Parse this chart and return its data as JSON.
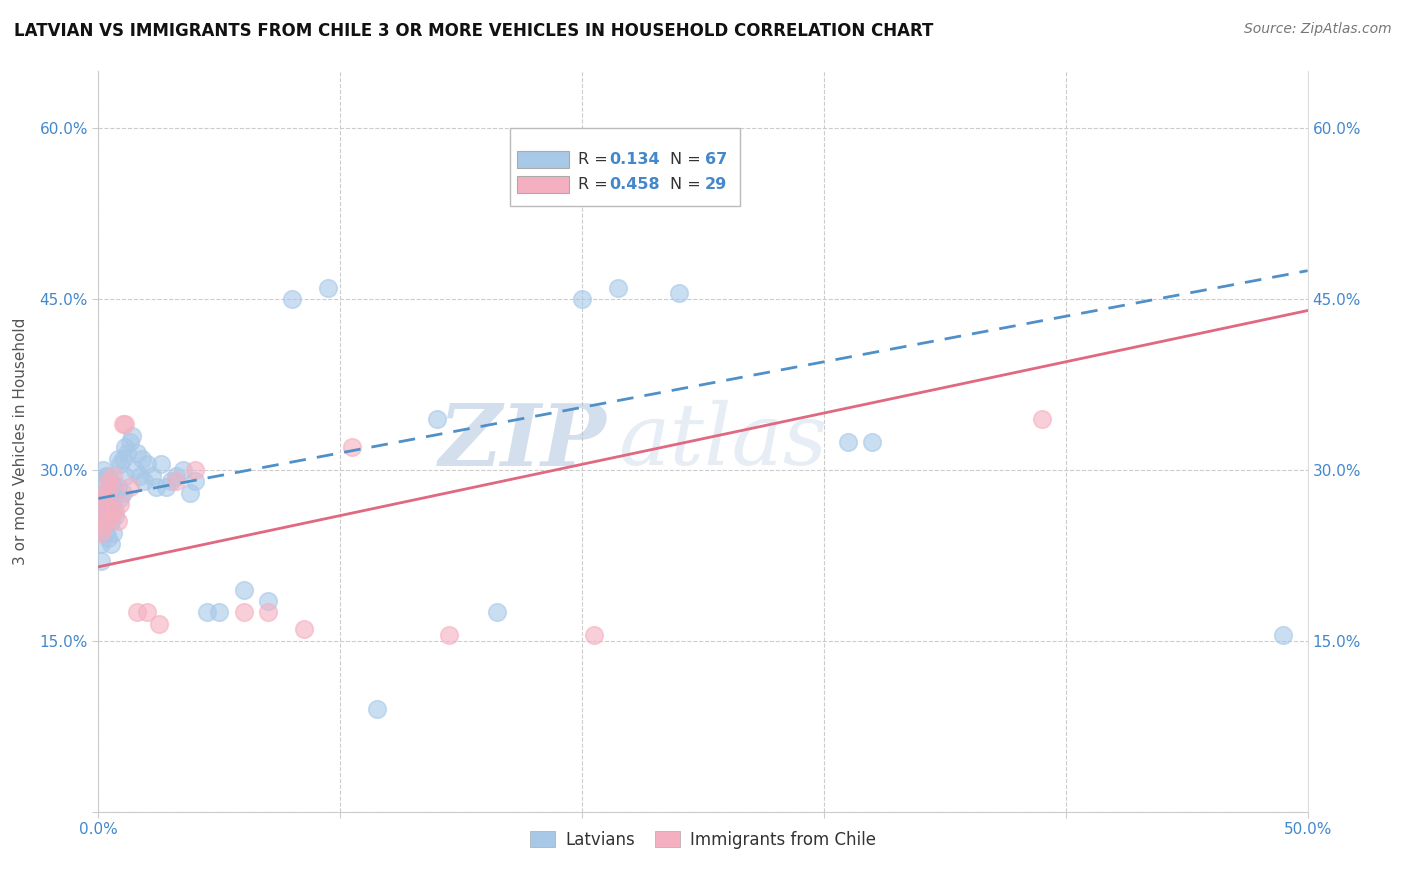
{
  "title": "LATVIAN VS IMMIGRANTS FROM CHILE 3 OR MORE VEHICLES IN HOUSEHOLD CORRELATION CHART",
  "source": "Source: ZipAtlas.com",
  "ylabel": "3 or more Vehicles in Household",
  "xlim": [
    0.0,
    0.5
  ],
  "ylim": [
    0.0,
    0.65
  ],
  "xticks": [
    0.0,
    0.1,
    0.2,
    0.3,
    0.4,
    0.5
  ],
  "xticklabels": [
    "0.0%",
    "",
    "",
    "",
    "",
    "50.0%"
  ],
  "yticks": [
    0.0,
    0.15,
    0.3,
    0.45,
    0.6
  ],
  "yticklabels_left": [
    "",
    "15.0%",
    "30.0%",
    "45.0%",
    "60.0%"
  ],
  "yticklabels_right": [
    "",
    "15.0%",
    "30.0%",
    "45.0%",
    "60.0%"
  ],
  "latvian_color": "#a8c8e8",
  "chile_color": "#f4b0c0",
  "latvian_line_color": "#5090c8",
  "chile_line_color": "#e06880",
  "R_latvian": 0.134,
  "N_latvian": 67,
  "R_chile": 0.458,
  "N_chile": 29,
  "legend_label_latvians": "Latvians",
  "legend_label_chile": "Immigrants from Chile",
  "watermark_zip": "ZIP",
  "watermark_atlas": "atlas",
  "latvian_line_x0": 0.0,
  "latvian_line_y0": 0.275,
  "latvian_line_x1": 0.5,
  "latvian_line_y1": 0.475,
  "chile_line_x0": 0.0,
  "chile_line_y0": 0.215,
  "chile_line_x1": 0.5,
  "chile_line_y1": 0.44,
  "latvian_pts_x": [
    0.001,
    0.001,
    0.001,
    0.001,
    0.001,
    0.002,
    0.002,
    0.002,
    0.002,
    0.003,
    0.003,
    0.003,
    0.003,
    0.004,
    0.004,
    0.004,
    0.004,
    0.005,
    0.005,
    0.005,
    0.005,
    0.006,
    0.006,
    0.006,
    0.007,
    0.007,
    0.008,
    0.008,
    0.009,
    0.009,
    0.01,
    0.01,
    0.011,
    0.011,
    0.012,
    0.013,
    0.014,
    0.015,
    0.016,
    0.017,
    0.018,
    0.019,
    0.02,
    0.022,
    0.024,
    0.026,
    0.028,
    0.03,
    0.032,
    0.035,
    0.038,
    0.04,
    0.045,
    0.05,
    0.06,
    0.07,
    0.08,
    0.095,
    0.115,
    0.14,
    0.165,
    0.2,
    0.215,
    0.24,
    0.31,
    0.32,
    0.49
  ],
  "latvian_pts_y": [
    0.29,
    0.27,
    0.255,
    0.235,
    0.22,
    0.3,
    0.28,
    0.265,
    0.25,
    0.295,
    0.28,
    0.265,
    0.245,
    0.295,
    0.275,
    0.26,
    0.24,
    0.29,
    0.27,
    0.255,
    0.235,
    0.285,
    0.265,
    0.245,
    0.28,
    0.26,
    0.31,
    0.285,
    0.305,
    0.275,
    0.31,
    0.28,
    0.32,
    0.295,
    0.315,
    0.325,
    0.33,
    0.3,
    0.315,
    0.295,
    0.31,
    0.29,
    0.305,
    0.295,
    0.285,
    0.305,
    0.285,
    0.29,
    0.295,
    0.3,
    0.28,
    0.29,
    0.175,
    0.175,
    0.195,
    0.185,
    0.45,
    0.46,
    0.09,
    0.345,
    0.175,
    0.45,
    0.46,
    0.455,
    0.325,
    0.325,
    0.155
  ],
  "chile_pts_x": [
    0.001,
    0.001,
    0.002,
    0.002,
    0.003,
    0.003,
    0.004,
    0.004,
    0.005,
    0.005,
    0.006,
    0.007,
    0.008,
    0.009,
    0.01,
    0.011,
    0.013,
    0.016,
    0.02,
    0.025,
    0.032,
    0.04,
    0.06,
    0.07,
    0.085,
    0.105,
    0.145,
    0.205,
    0.39
  ],
  "chile_pts_y": [
    0.265,
    0.245,
    0.275,
    0.25,
    0.28,
    0.255,
    0.29,
    0.265,
    0.285,
    0.26,
    0.295,
    0.265,
    0.255,
    0.27,
    0.34,
    0.34,
    0.285,
    0.175,
    0.175,
    0.165,
    0.29,
    0.3,
    0.175,
    0.175,
    0.16,
    0.32,
    0.155,
    0.155,
    0.345
  ]
}
